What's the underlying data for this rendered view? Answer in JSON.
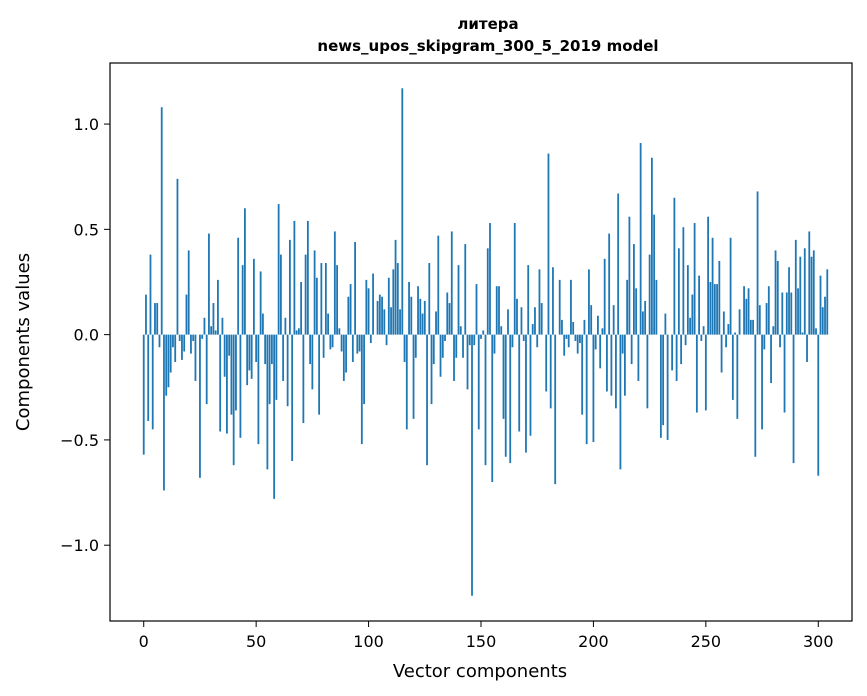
{
  "chart_data": {
    "type": "bar",
    "title": "литера",
    "subtitle": "news_upos_skipgram_300_5_2019 model",
    "xlabel": "Vector components",
    "ylabel": "Components values",
    "xlim": [
      -15,
      315
    ],
    "ylim": [
      -1.36,
      1.29
    ],
    "xticks": [
      0,
      50,
      100,
      150,
      200,
      250,
      300
    ],
    "xtick_labels": [
      "0",
      "50",
      "100",
      "150",
      "200",
      "250",
      "300"
    ],
    "yticks": [
      -1.0,
      -0.5,
      0.0,
      0.5,
      1.0
    ],
    "ytick_labels": [
      "−1.0",
      "−0.5",
      "0.0",
      "0.5",
      "1.0"
    ],
    "grid": false,
    "legend": "none",
    "bar_color": "#1f77b4",
    "series": [
      {
        "values": [
          -0.57,
          0.19,
          -0.41,
          0.38,
          -0.45,
          0.15,
          0.15,
          -0.06,
          1.08,
          -0.74,
          -0.29,
          -0.25,
          -0.18,
          -0.06,
          -0.13,
          0.74,
          -0.03,
          -0.12,
          -0.08,
          0.19,
          0.4,
          -0.09,
          -0.03,
          -0.22,
          0.0,
          -0.68,
          -0.02,
          0.08,
          -0.33,
          0.48,
          0.04,
          0.15,
          0.02,
          0.26,
          -0.46,
          0.08,
          -0.2,
          -0.47,
          -0.1,
          -0.38,
          -0.62,
          -0.36,
          0.46,
          -0.49,
          0.33,
          0.6,
          -0.24,
          -0.17,
          -0.21,
          0.36,
          -0.13,
          -0.52,
          0.3,
          0.1,
          -0.14,
          -0.64,
          -0.33,
          -0.14,
          -0.78,
          -0.31,
          0.62,
          0.38,
          -0.22,
          0.08,
          -0.34,
          0.45,
          -0.6,
          0.54,
          0.02,
          0.03,
          0.25,
          -0.42,
          0.38,
          0.54,
          -0.14,
          -0.26,
          0.4,
          0.27,
          -0.38,
          0.34,
          -0.11,
          0.34,
          0.1,
          -0.07,
          -0.06,
          0.49,
          0.33,
          0.03,
          -0.08,
          -0.22,
          -0.18,
          0.18,
          0.24,
          -0.13,
          0.44,
          -0.09,
          -0.08,
          -0.52,
          -0.33,
          0.26,
          0.22,
          -0.04,
          0.29,
          0.0,
          0.16,
          0.19,
          0.18,
          0.12,
          -0.05,
          0.27,
          0.13,
          0.31,
          0.45,
          0.34,
          0.12,
          1.17,
          -0.13,
          -0.45,
          0.25,
          0.18,
          -0.4,
          -0.11,
          0.23,
          0.17,
          0.1,
          0.16,
          -0.62,
          0.34,
          -0.33,
          -0.14,
          0.11,
          0.47,
          -0.2,
          -0.11,
          -0.03,
          0.2,
          0.15,
          0.49,
          -0.22,
          -0.11,
          0.33,
          0.04,
          -0.11,
          0.43,
          -0.26,
          -0.05,
          -1.24,
          -0.05,
          0.24,
          -0.45,
          -0.02,
          0.02,
          -0.62,
          0.41,
          0.53,
          -0.7,
          -0.09,
          0.23,
          0.23,
          0.04,
          -0.4,
          -0.58,
          0.12,
          -0.61,
          -0.06,
          0.53,
          0.17,
          -0.46,
          0.13,
          -0.03,
          -0.56,
          0.33,
          -0.48,
          0.05,
          0.13,
          -0.06,
          0.31,
          0.15,
          0.0,
          -0.27,
          0.86,
          -0.35,
          0.32,
          -0.71,
          0.0,
          0.26,
          0.07,
          -0.1,
          -0.02,
          -0.06,
          0.26,
          0.06,
          -0.03,
          -0.09,
          -0.04,
          -0.38,
          0.07,
          -0.52,
          0.31,
          0.14,
          -0.51,
          -0.07,
          0.09,
          -0.16,
          0.03,
          0.36,
          -0.27,
          0.48,
          -0.29,
          0.14,
          -0.35,
          0.67,
          -0.64,
          -0.09,
          -0.29,
          0.26,
          0.56,
          -0.14,
          0.43,
          0.22,
          -0.22,
          0.91,
          0.11,
          0.16,
          -0.35,
          0.38,
          0.84,
          0.57,
          0.26,
          0.0,
          -0.49,
          -0.43,
          0.1,
          -0.5,
          0.0,
          -0.17,
          0.65,
          -0.22,
          0.41,
          -0.14,
          0.51,
          -0.05,
          0.33,
          0.08,
          0.19,
          0.53,
          -0.37,
          0.28,
          -0.03,
          0.04,
          -0.36,
          0.56,
          0.25,
          0.46,
          0.24,
          0.24,
          0.35,
          -0.18,
          0.11,
          -0.06,
          0.05,
          0.46,
          -0.31,
          0.01,
          -0.4,
          0.12,
          0.0,
          0.23,
          0.17,
          0.22,
          0.07,
          0.07,
          -0.58,
          0.68,
          0.14,
          -0.45,
          -0.07,
          0.15,
          0.23,
          -0.23,
          0.04,
          0.4,
          0.35,
          -0.06,
          0.2,
          -0.37,
          0.2,
          0.32,
          0.2,
          -0.61,
          0.45,
          0.22,
          0.37,
          0.01,
          0.41,
          -0.13,
          0.49,
          0.37,
          0.4,
          0.03,
          -0.67,
          0.28,
          0.13,
          0.18,
          0.31
        ]
      }
    ]
  }
}
